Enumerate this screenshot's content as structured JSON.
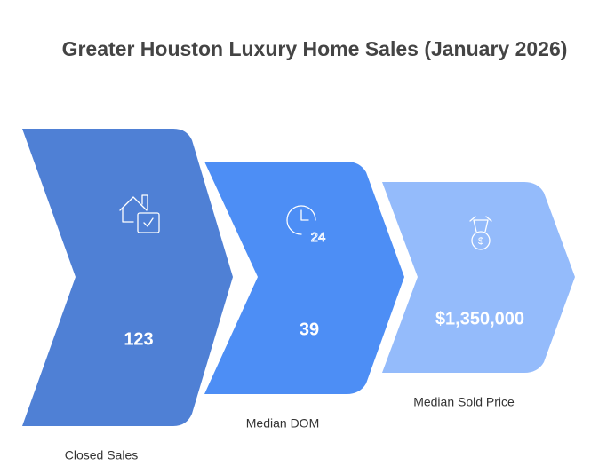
{
  "header": {
    "title": "Greater Houston Luxury Home Sales (January 2026)"
  },
  "steps": [
    {
      "value": "123",
      "label": "Closed Sales"
    },
    {
      "value": "39",
      "label": "Median DOM"
    },
    {
      "value": "$1,350,000",
      "label": "Median Sold Price"
    }
  ]
}
